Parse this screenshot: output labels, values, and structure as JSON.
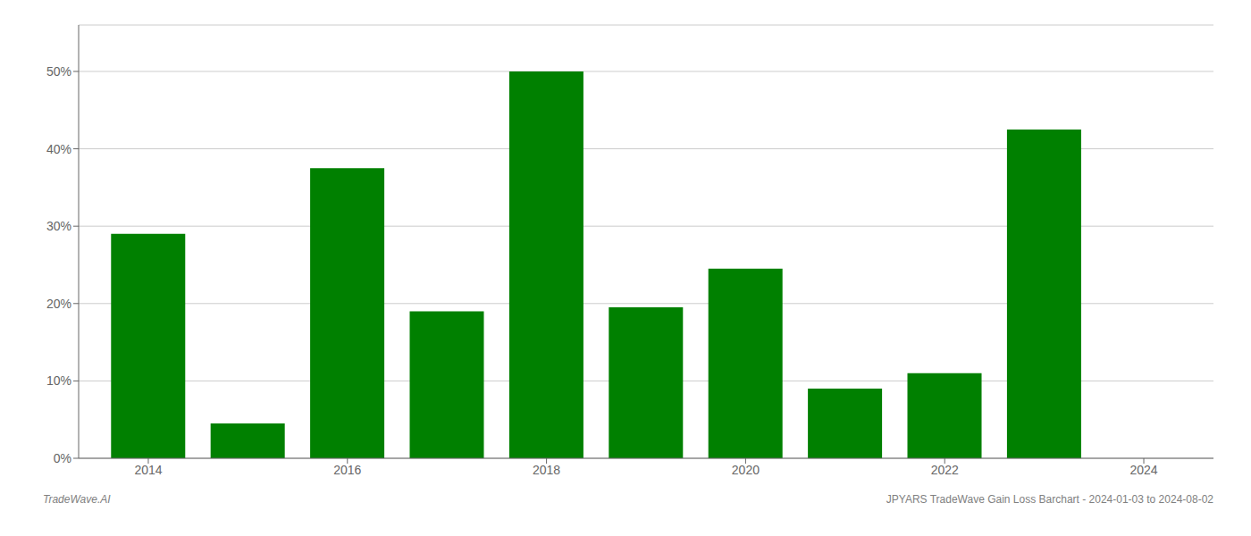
{
  "chart_data": {
    "type": "bar",
    "x": [
      2014,
      2015,
      2016,
      2017,
      2018,
      2019,
      2020,
      2021,
      2022,
      2023
    ],
    "values": [
      0.29,
      0.045,
      0.375,
      0.19,
      0.5,
      0.195,
      0.245,
      0.09,
      0.11,
      0.425
    ],
    "color": "#008000",
    "xlim": [
      2013.3,
      2024.7
    ],
    "xticks": [
      2014,
      2016,
      2018,
      2020,
      2022,
      2024
    ],
    "ylim": [
      0,
      0.56
    ],
    "yticks": [
      {
        "value": 0.0,
        "label": "0%"
      },
      {
        "value": 0.1,
        "label": "10%"
      },
      {
        "value": 0.2,
        "label": "20%"
      },
      {
        "value": 0.3,
        "label": "30%"
      },
      {
        "value": 0.4,
        "label": "40%"
      },
      {
        "value": 0.5,
        "label": "50%"
      }
    ],
    "grid": true,
    "annotations": [
      "TradeWave.AI",
      "JPYARS TradeWave Gain Loss Barchart - 2024-01-03 to 2024-08-02"
    ]
  }
}
